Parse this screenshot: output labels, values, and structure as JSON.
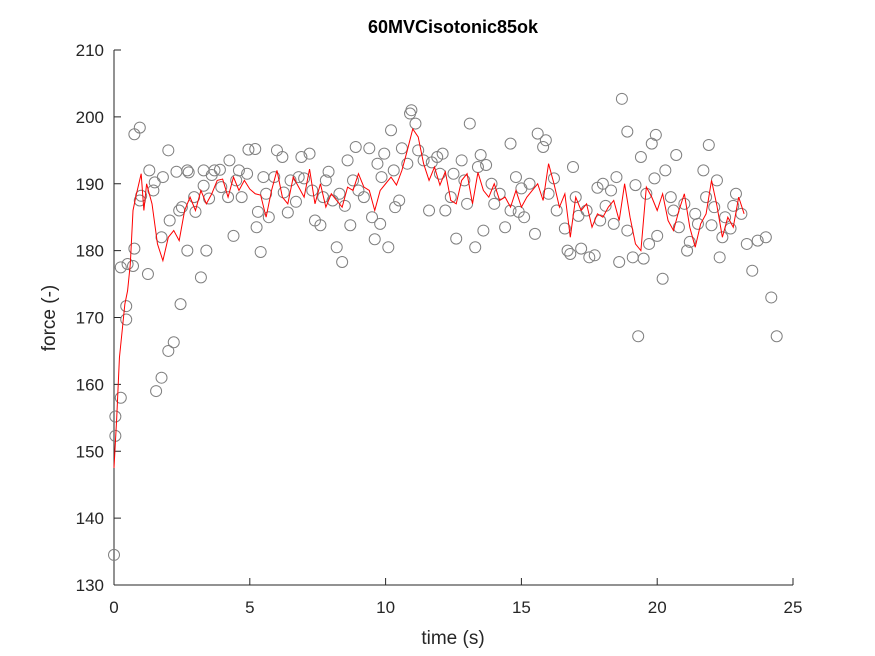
{
  "chart_data": {
    "type": "scatter",
    "title": "60MVCisotonic85ok",
    "xlabel": "time (s)",
    "ylabel": "force (-)",
    "xlim": [
      0,
      25
    ],
    "xticks": [
      0,
      5,
      10,
      15,
      20,
      25
    ],
    "ylim": [
      130,
      210
    ],
    "yticks": [
      130,
      140,
      150,
      160,
      170,
      180,
      190,
      200,
      210
    ],
    "series": [
      {
        "style": "circle",
        "color": "#808080",
        "x": [
          0,
          0.05,
          0.05,
          0.25,
          0.25,
          0.45,
          0.45,
          0.5,
          0.7,
          0.75,
          0.75,
          0.95,
          0.95,
          1,
          1.25,
          1.3,
          1.45,
          1.5,
          1.55,
          1.75,
          1.75,
          1.8,
          2,
          2,
          2.05,
          2.2,
          2.3,
          2.4,
          2.45,
          2.5,
          2.7,
          2.7,
          2.75,
          2.95,
          3,
          3.2,
          3.3,
          3.3,
          3.4,
          3.5,
          3.6,
          3.7,
          3.9,
          3.95,
          4.2,
          4.25,
          4.4,
          4.5,
          4.6,
          4.7,
          4.9,
          4.95,
          5.2,
          5.25,
          5.3,
          5.4,
          5.5,
          5.6,
          5.7,
          5.9,
          6,
          6.2,
          6.25,
          6.4,
          6.5,
          6.7,
          6.8,
          6.9,
          7,
          7.2,
          7.3,
          7.4,
          7.6,
          7.7,
          7.8,
          7.9,
          8.05,
          8.2,
          8.3,
          8.4,
          8.5,
          8.6,
          8.7,
          8.8,
          8.9,
          9,
          9.2,
          9.4,
          9.5,
          9.6,
          9.7,
          9.8,
          9.85,
          9.95,
          10.1,
          10.2,
          10.3,
          10.35,
          10.5,
          10.6,
          10.8,
          10.9,
          10.95,
          11.1,
          11.2,
          11.4,
          11.6,
          11.7,
          11.9,
          12,
          12.1,
          12.2,
          12.4,
          12.5,
          12.6,
          12.8,
          12.9,
          13,
          13.1,
          13.3,
          13.4,
          13.5,
          13.6,
          13.7,
          13.9,
          14,
          14.2,
          14.4,
          14.6,
          14.6,
          14.8,
          14.9,
          15,
          15.1,
          15.3,
          15.5,
          15.6,
          15.8,
          15.9,
          16,
          16.2,
          16.3,
          16.6,
          16.7,
          16.8,
          16.9,
          17,
          17.1,
          17.2,
          17.4,
          17.5,
          17.7,
          17.8,
          17.9,
          18,
          18.1,
          18.3,
          18.4,
          18.5,
          18.6,
          18.7,
          18.9,
          18.9,
          19.1,
          19.2,
          19.3,
          19.4,
          19.5,
          19.6,
          19.7,
          19.8,
          19.9,
          19.95,
          20,
          20.2,
          20.3,
          20.5,
          20.6,
          20.7,
          20.8,
          21,
          21.1,
          21.2,
          21.4,
          21.5,
          21.7,
          21.8,
          21.9,
          22,
          22.1,
          22.2,
          22.3,
          22.4,
          22.5,
          22.7,
          22.8,
          22.9,
          23.1,
          23.3,
          23.5,
          23.7,
          24,
          24.2,
          24.4
        ],
        "values": [
          134.5,
          152.3,
          155.2,
          158,
          177.5,
          169.7,
          171.7,
          178,
          177.7,
          180.3,
          197.4,
          198.4,
          187.5,
          188.2,
          176.5,
          192,
          189,
          190.2,
          159,
          161,
          182,
          191,
          165,
          195,
          184.5,
          166.3,
          191.8,
          186,
          172,
          186.5,
          180,
          192,
          191.7,
          188,
          185.8,
          176,
          189.7,
          192,
          180,
          187.8,
          191.3,
          192,
          192.1,
          189.5,
          188,
          193.5,
          182.2,
          190.5,
          192,
          188,
          191.5,
          195.1,
          195.2,
          183.5,
          185.8,
          179.8,
          191,
          188.5,
          185,
          191,
          195,
          194,
          188.7,
          185.7,
          190.5,
          187.3,
          191,
          194,
          190.8,
          194.5,
          189,
          184.5,
          183.8,
          188,
          190.5,
          191.8,
          187.5,
          180.5,
          188.5,
          178.3,
          186.7,
          193.5,
          183.8,
          190.5,
          195.5,
          189,
          188,
          195.3,
          185,
          181.7,
          193,
          184,
          191,
          194.5,
          180.5,
          198,
          192,
          186.5,
          187.5,
          195.3,
          193,
          200.5,
          201,
          199,
          195,
          193.5,
          186,
          193.2,
          194,
          191.5,
          194.5,
          186,
          188,
          191.5,
          181.8,
          193.5,
          190.5,
          187,
          199,
          180.5,
          192.5,
          194.3,
          183,
          192.8,
          190,
          187,
          188.5,
          183.5,
          186,
          196,
          191,
          185.8,
          189.3,
          185,
          190,
          182.5,
          197.5,
          195.5,
          196.5,
          188.5,
          190.8,
          186,
          183.3,
          180,
          179.5,
          192.5,
          188,
          185.2,
          180.3,
          186,
          179,
          179.3,
          189.4,
          184.5,
          190,
          186.7,
          189,
          184,
          191,
          178.3,
          202.7,
          197.8,
          183,
          179,
          189.8,
          167.2,
          194,
          178.8,
          188.5,
          181,
          196,
          190.8,
          197.3,
          182.2,
          175.8,
          192,
          188,
          186,
          194.3,
          183.5,
          187,
          180,
          181.3,
          185.5,
          184,
          192,
          188,
          195.8,
          183.8,
          186.5,
          190.5,
          179,
          182,
          185,
          183.3,
          186.7,
          188.5,
          185.5,
          181,
          177,
          181.5,
          182,
          173,
          167.2
        ]
      },
      {
        "style": "line",
        "color": "#ff0000",
        "x": [
          0,
          0.1,
          0.2,
          0.3,
          0.4,
          0.5,
          0.6,
          0.7,
          0.8,
          1,
          1.1,
          1.2,
          1.4,
          1.6,
          1.8,
          2,
          2.2,
          2.4,
          2.6,
          2.8,
          3,
          3.2,
          3.4,
          3.6,
          3.8,
          4,
          4.2,
          4.4,
          4.6,
          4.8,
          5,
          5.2,
          5.4,
          5.6,
          5.8,
          6,
          6.2,
          6.4,
          6.6,
          6.8,
          7,
          7.2,
          7.4,
          7.6,
          7.8,
          8,
          8.2,
          8.4,
          8.6,
          8.8,
          9,
          9.2,
          9.4,
          9.6,
          9.8,
          10,
          10.2,
          10.4,
          10.6,
          10.8,
          11,
          11.2,
          11.4,
          11.6,
          11.8,
          12,
          12.2,
          12.4,
          12.6,
          12.8,
          13,
          13.2,
          13.4,
          13.6,
          13.8,
          14,
          14.2,
          14.4,
          14.6,
          14.8,
          15,
          15.2,
          15.4,
          15.6,
          15.8,
          16,
          16.2,
          16.4,
          16.6,
          16.8,
          17,
          17.2,
          17.4,
          17.6,
          17.8,
          18,
          18.2,
          18.4,
          18.6,
          18.8,
          19,
          19.2,
          19.4,
          19.6,
          19.8,
          20,
          20.2,
          20.4,
          20.6,
          20.8,
          21,
          21.2,
          21.4,
          21.6,
          21.8,
          22,
          22.2,
          22.4,
          22.6,
          22.8,
          23,
          23.2
        ],
        "values": [
          147.5,
          155,
          164,
          168,
          172,
          174,
          178,
          186,
          188,
          191.5,
          186,
          190,
          187,
          181,
          178.5,
          182,
          183,
          181.5,
          186,
          188,
          186,
          189,
          187,
          188.5,
          190.5,
          190.7,
          188,
          191,
          189,
          190.5,
          189.2,
          188.5,
          188.3,
          185,
          189,
          192,
          188,
          187,
          191,
          189.5,
          188,
          192.2,
          187,
          190,
          186.5,
          188.5,
          187.5,
          186.5,
          189.5,
          189,
          191.5,
          189.5,
          189,
          186,
          189,
          190,
          191,
          189.8,
          192,
          195,
          198.2,
          197,
          193,
          190.5,
          192.5,
          189.8,
          191.8,
          187.5,
          187,
          190.5,
          191.5,
          187,
          191.7,
          189,
          188,
          190,
          187.5,
          188,
          186.5,
          189,
          186.5,
          188,
          189,
          190,
          187.5,
          193,
          190,
          186.5,
          188.5,
          182,
          188,
          186,
          187,
          183.5,
          185.5,
          185,
          186.5,
          187.5,
          184.5,
          190,
          185,
          181,
          180,
          189.5,
          188,
          186,
          188.5,
          184.5,
          183,
          186,
          188.5,
          183.5,
          180.5,
          184,
          185.5,
          190.5,
          186.7,
          182,
          185,
          183.5,
          188,
          185.5
        ]
      }
    ]
  }
}
